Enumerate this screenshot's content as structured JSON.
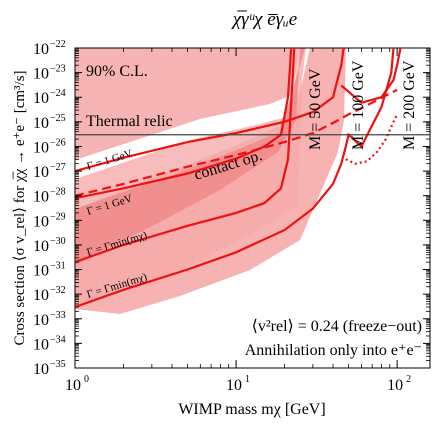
{
  "chart_data": {
    "type": "line",
    "title": "χ̅γᵘχ e̅γᵤe",
    "xlabel": "WIMP mass mχ [GeV]",
    "ylabel": "Cross section ⟨σ v_rel⟩ for χ̅χ → e⁺e⁻ [cm³/s]",
    "xscale": "log",
    "yscale": "log",
    "xlim": [
      1,
      160
    ],
    "ylim": [
      1e-35,
      1e-22
    ],
    "x_ticks": [
      {
        "value": 1,
        "label": "10",
        "exp": "0"
      },
      {
        "value": 10,
        "label": "10",
        "exp": "1"
      },
      {
        "value": 100,
        "label": "10",
        "exp": "2"
      }
    ],
    "y_ticks": [
      {
        "value": 1e-22,
        "label": "10",
        "exp": "−22"
      },
      {
        "value": 1e-23,
        "label": "10",
        "exp": "−23"
      },
      {
        "value": 1e-24,
        "label": "10",
        "exp": "−24"
      },
      {
        "value": 1e-25,
        "label": "10",
        "exp": "−25"
      },
      {
        "value": 1e-26,
        "label": "10",
        "exp": "−26"
      },
      {
        "value": 1e-27,
        "label": "10",
        "exp": "−27"
      },
      {
        "value": 1e-28,
        "label": "10",
        "exp": "−28"
      },
      {
        "value": 1e-29,
        "label": "10",
        "exp": "−29"
      },
      {
        "value": 1e-30,
        "label": "10",
        "exp": "−30"
      },
      {
        "value": 1e-31,
        "label": "10",
        "exp": "−31"
      },
      {
        "value": 1e-32,
        "label": "10",
        "exp": "−32"
      },
      {
        "value": 1e-33,
        "label": "10",
        "exp": "−33"
      },
      {
        "value": 1e-34,
        "label": "10",
        "exp": "−34"
      },
      {
        "value": 1e-35,
        "label": "10",
        "exp": "−35"
      }
    ],
    "reference_line": {
      "label": "Thermal relic",
      "y": 3e-26
    },
    "series": [
      {
        "label": "M = 50 GeV",
        "style": "solid",
        "points": [
          [
            1,
            7.9e-29
          ],
          [
            2,
            2e-28
          ],
          [
            5,
            8e-28
          ],
          [
            10,
            3.2e-27
          ],
          [
            15,
            1e-26
          ],
          [
            19,
            3e-26
          ],
          [
            21,
            1e-24
          ],
          [
            22,
            1e-22
          ]
        ]
      },
      {
        "label": "M = 50 GeV",
        "style": "solid",
        "points": [
          [
            1,
            2e-31
          ],
          [
            2,
            1e-30
          ],
          [
            5,
            6e-30
          ],
          [
            10,
            2e-29
          ],
          [
            15,
            5e-29
          ],
          [
            19,
            2e-28
          ],
          [
            21,
            3e-27
          ],
          [
            23,
            1e-22
          ]
        ]
      },
      {
        "label": "M = 100 GeV",
        "style": "solid",
        "points": [
          [
            1,
            1e-27
          ],
          [
            2,
            3.5e-27
          ],
          [
            5,
            1.5e-26
          ],
          [
            10,
            3.5e-26
          ],
          [
            20,
            1e-25
          ],
          [
            30,
            2.5e-25
          ],
          [
            40,
            1e-24
          ],
          [
            45,
            2e-23
          ],
          [
            46.5,
            1e-22
          ]
        ]
      },
      {
        "label": "M = 100 GeV",
        "style": "solid",
        "points": [
          [
            1,
            3e-33
          ],
          [
            2,
            1.5e-32
          ],
          [
            5,
            1e-31
          ],
          [
            10,
            5e-31
          ],
          [
            20,
            4e-30
          ],
          [
            30,
            3e-29
          ],
          [
            40,
            3e-28
          ],
          [
            45,
            2e-27
          ],
          [
            48,
            1e-26
          ],
          [
            50,
            3e-26
          ],
          [
            60,
            1e-26
          ],
          [
            80,
            4e-25
          ],
          [
            92,
            1e-23
          ],
          [
            95,
            1e-22
          ]
        ]
      },
      {
        "label": "M = 200 GeV",
        "style": "solid",
        "points": [
          [
            45,
            3e-24
          ],
          [
            60,
            6e-25
          ],
          [
            80,
            1e-24
          ],
          [
            95,
            5e-24
          ],
          [
            100,
            2e-23
          ],
          [
            105,
            1e-22
          ]
        ]
      },
      {
        "label": "contact op.",
        "style": "dashed",
        "points": [
          [
            1,
            1e-28
          ],
          [
            2,
            3e-28
          ],
          [
            5,
            1.5e-27
          ],
          [
            10,
            4.5e-27
          ],
          [
            20,
            1.5e-26
          ],
          [
            30,
            3.5e-26
          ],
          [
            40,
            9e-26
          ],
          [
            50,
            2e-25
          ],
          [
            70,
            6e-25
          ],
          [
            100,
            2e-24
          ]
        ]
      },
      {
        "label": "Γ = Γmin",
        "style": "dotted",
        "points": [
          [
            48,
            3e-27
          ],
          [
            55,
            2e-27
          ],
          [
            65,
            2.5e-27
          ],
          [
            75,
            6e-27
          ],
          [
            85,
            2e-26
          ],
          [
            95,
            1e-25
          ],
          [
            100,
            2e-25
          ]
        ]
      }
    ],
    "band_labels": [
      {
        "text": "Γ = 1 GeV",
        "x": 1.6,
        "y": 6e-28
      },
      {
        "text": "Γ = 1 GeV",
        "x": 1.6,
        "y": 1.7e-29
      },
      {
        "text": "Γ = Γmin(mχ)",
        "x": 1.55,
        "y": 4e-31
      },
      {
        "text": "Γ = Γmin(mχ)",
        "x": 1.55,
        "y": 1e-32
      }
    ],
    "annotations": {
      "cl": "90% C.L.",
      "contact": "contact op.",
      "m50": "M = 50 GeV",
      "m100": "M = 100 GeV",
      "m200": "M = 200 GeV",
      "freeze": "⟨v²rel⟩ = 0.24 (freeze−out)",
      "annih": "Annihilation only into e⁺e⁻"
    },
    "colors": {
      "line": "#ee1111",
      "band": "#f5a4a4",
      "band_dark": "#f08080"
    }
  }
}
